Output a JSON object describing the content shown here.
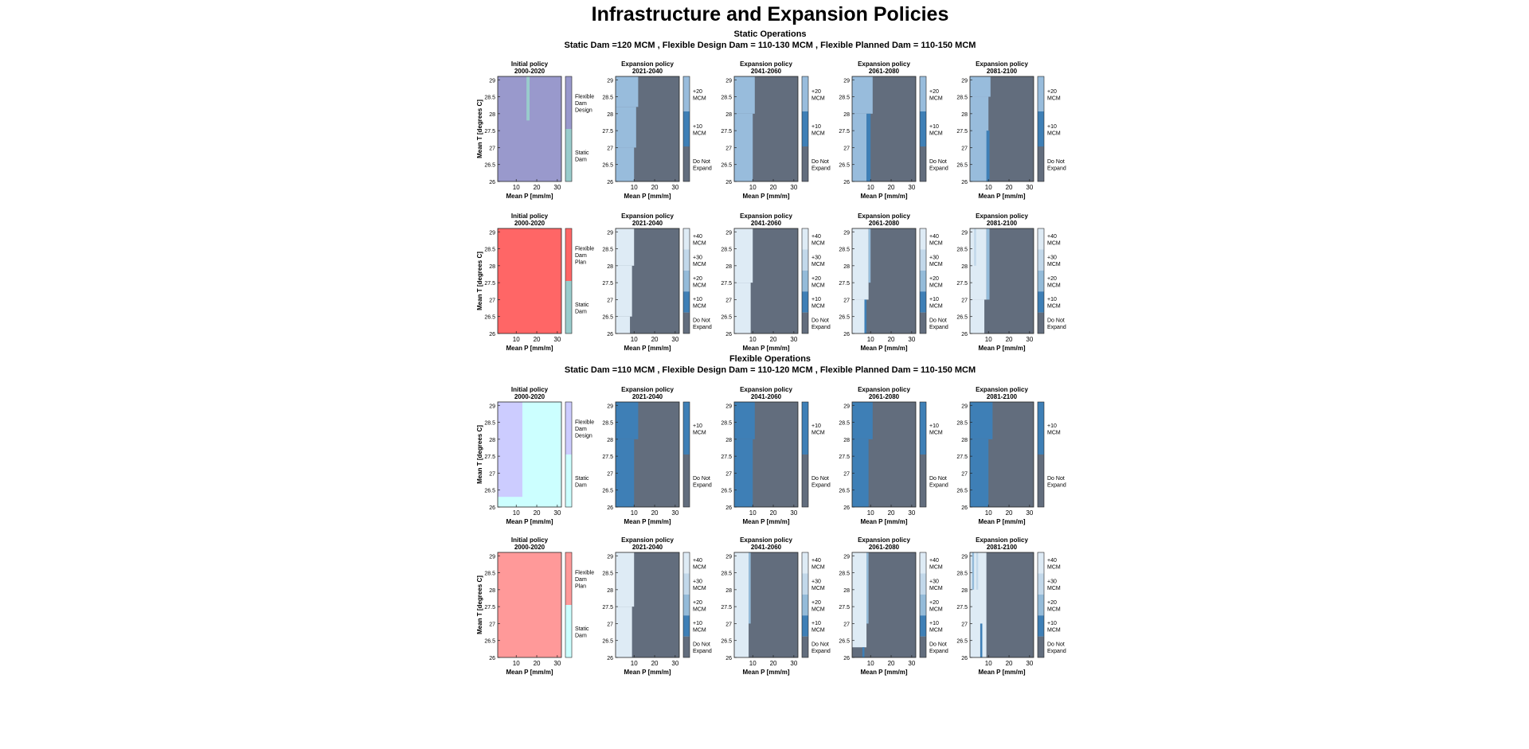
{
  "title": "Infrastructure and Expansion Policies",
  "axes": {
    "x_label": "Mean P [mm/m]",
    "y_label": "Mean T [degrees C]",
    "xlim": [
      1,
      32
    ],
    "ylim": [
      26,
      29.1
    ],
    "xticks": [
      10,
      20,
      30
    ],
    "yticks": [
      26,
      26.5,
      27,
      27.5,
      28,
      28.5,
      29
    ],
    "initial_title": "Initial policy",
    "expansion_title": "Expansion policy",
    "periods": [
      "2000-2020",
      "2021-2040",
      "2041-2060",
      "2061-2080",
      "2081-2100"
    ]
  },
  "sections": [
    {
      "name": "Static Operations",
      "subtitle": "Static Dam =120 MCM , Flexible Design Dam = 110-130 MCM , Flexible Planned Dam = 110-150 MCM",
      "rows": [
        {
          "initial": {
            "legend": [
              {
                "label": [
                  "Flexible",
                  "Dam",
                  "Design"
                ],
                "color": "#9999cc"
              },
              {
                "label": [
                  "Static",
                  "Dam"
                ],
                "color": "#99cccc"
              }
            ],
            "regions": [
              [
                0,
                1,
                32,
                26,
                29.1
              ],
              [
                1,
                15,
                16.5,
                27.8,
                29.1
              ]
            ]
          },
          "expansion": {
            "legend": [
              {
                "label": [
                  "+20",
                  "MCM"
                ],
                "color": "#98bcdc"
              },
              {
                "label": [
                  "+10",
                  "MCM"
                ],
                "color": "#3e7fb6"
              },
              {
                "label": [
                  "Do Not",
                  "Expand"
                ],
                "color": "#626d7d"
              }
            ],
            "panels": [
              [
                [
                  2,
                  1,
                  32,
                  26,
                  29.1
                ],
                [
                  0,
                  1,
                  12,
                  28.2,
                  29.1
                ],
                [
                  0,
                  1,
                  11,
                  27,
                  28.2
                ],
                [
                  0,
                  1,
                  10,
                  26,
                  27
                ]
              ],
              [
                [
                  2,
                  1,
                  32,
                  26,
                  29.1
                ],
                [
                  0,
                  1,
                  11,
                  28,
                  29.1
                ],
                [
                  0,
                  1,
                  10,
                  26,
                  28
                ]
              ],
              [
                [
                  2,
                  1,
                  32,
                  26,
                  29.1
                ],
                [
                  0,
                  1,
                  11,
                  28,
                  29.1
                ],
                [
                  0,
                  1,
                  8,
                  26,
                  28
                ],
                [
                  1,
                  8,
                  10,
                  26,
                  28
                ]
              ],
              [
                [
                  2,
                  1,
                  32,
                  26,
                  29.1
                ],
                [
                  0,
                  1,
                  11,
                  28.5,
                  29.1
                ],
                [
                  0,
                  1,
                  10,
                  26,
                  28.5
                ],
                [
                  1,
                  9,
                  10.5,
                  26,
                  27.5
                ]
              ]
            ]
          }
        },
        {
          "initial": {
            "legend": [
              {
                "label": [
                  "Flexible",
                  "Dam",
                  "Plan"
                ],
                "color": "#ff6666"
              },
              {
                "label": [
                  "Static",
                  "Dam"
                ],
                "color": "#99cccc"
              }
            ],
            "regions": [
              [
                0,
                1,
                32,
                26,
                29.1
              ]
            ]
          },
          "expansion": {
            "legend": [
              {
                "label": [
                  "+40",
                  "MCM"
                ],
                "color": "#deebf5"
              },
              {
                "label": [
                  "+30",
                  "MCM"
                ],
                "color": "#c2d8ea"
              },
              {
                "label": [
                  "+20",
                  "MCM"
                ],
                "color": "#94bbd9"
              },
              {
                "label": [
                  "+10",
                  "MCM"
                ],
                "color": "#3e7fb6"
              },
              {
                "label": [
                  "Do Not",
                  "Expand"
                ],
                "color": "#626d7d"
              }
            ],
            "panels": [
              [
                [
                  4,
                  1,
                  32,
                  26,
                  29.1
                ],
                [
                  0,
                  1,
                  10,
                  28,
                  29.1
                ],
                [
                  0,
                  1,
                  9,
                  26.5,
                  28
                ],
                [
                  0,
                  1,
                  8,
                  26,
                  26.5
                ]
              ],
              [
                [
                  4,
                  1,
                  32,
                  26,
                  29.1
                ],
                [
                  0,
                  1,
                  10,
                  27.5,
                  29.1
                ],
                [
                  0,
                  1,
                  9,
                  26,
                  27.5
                ]
              ],
              [
                [
                  4,
                  1,
                  32,
                  26,
                  29.1
                ],
                [
                  0,
                  1,
                  9,
                  27,
                  29.1
                ],
                [
                  0,
                  1,
                  7,
                  26,
                  27
                ],
                [
                  3,
                  7,
                  8,
                  26,
                  27
                ],
                [
                  2,
                  9,
                  10,
                  27.5,
                  29.1
                ]
              ],
              [
                [
                  4,
                  1,
                  32,
                  26,
                  29.1
                ],
                [
                  0,
                  1,
                  9,
                  27,
                  29.1
                ],
                [
                  0,
                  1,
                  8,
                  26,
                  27
                ],
                [
                  2,
                  9,
                  10.5,
                  27,
                  29.1
                ],
                [
                  1,
                  3,
                  4,
                  28,
                  29.1
                ]
              ]
            ]
          }
        }
      ]
    },
    {
      "name": "Flexible Operations",
      "subtitle": "Static Dam =110 MCM , Flexible Design Dam = 110-120 MCM , Flexible Planned Dam = 110-150 MCM",
      "rows": [
        {
          "initial": {
            "legend": [
              {
                "label": [
                  "Flexible",
                  "Dam",
                  "Design"
                ],
                "color": "#ccccff"
              },
              {
                "label": [
                  "Static",
                  "Dam"
                ],
                "color": "#ccffff"
              }
            ],
            "regions": [
              [
                1,
                1,
                32,
                26,
                29.1
              ],
              [
                0,
                1,
                13,
                26.3,
                29.1
              ]
            ]
          },
          "expansion": {
            "legend": [
              {
                "label": [
                  "+10",
                  "MCM"
                ],
                "color": "#3e7fb6"
              },
              {
                "label": [
                  "Do Not",
                  "Expand"
                ],
                "color": "#626d7d"
              }
            ],
            "panels": [
              [
                [
                  1,
                  1,
                  32,
                  26,
                  29.1
                ],
                [
                  0,
                  1,
                  12,
                  28,
                  29.1
                ],
                [
                  0,
                  1,
                  10,
                  26,
                  28
                ]
              ],
              [
                [
                  1,
                  1,
                  32,
                  26,
                  29.1
                ],
                [
                  0,
                  1,
                  11,
                  28,
                  29.1
                ],
                [
                  0,
                  1,
                  10,
                  26,
                  28
                ]
              ],
              [
                [
                  1,
                  1,
                  32,
                  26,
                  29.1
                ],
                [
                  0,
                  1,
                  11,
                  28,
                  29.1
                ],
                [
                  0,
                  1,
                  9,
                  26,
                  28
                ]
              ],
              [
                [
                  1,
                  1,
                  32,
                  26,
                  29.1
                ],
                [
                  0,
                  1,
                  12,
                  28,
                  29.1
                ],
                [
                  0,
                  1,
                  10,
                  26,
                  28
                ]
              ]
            ]
          }
        },
        {
          "initial": {
            "legend": [
              {
                "label": [
                  "Flexible",
                  "Dam",
                  "Plan"
                ],
                "color": "#ff9999"
              },
              {
                "label": [
                  "Static",
                  "Dam"
                ],
                "color": "#ccffff"
              }
            ],
            "regions": [
              [
                0,
                1,
                32,
                26,
                29.1
              ]
            ]
          },
          "expansion": {
            "legend": [
              {
                "label": [
                  "+40",
                  "MCM"
                ],
                "color": "#deebf5"
              },
              {
                "label": [
                  "+30",
                  "MCM"
                ],
                "color": "#c2d8ea"
              },
              {
                "label": [
                  "+20",
                  "MCM"
                ],
                "color": "#94bbd9"
              },
              {
                "label": [
                  "+10",
                  "MCM"
                ],
                "color": "#3e7fb6"
              },
              {
                "label": [
                  "Do Not",
                  "Expand"
                ],
                "color": "#626d7d"
              }
            ],
            "panels": [
              [
                [
                  4,
                  1,
                  32,
                  26,
                  29.1
                ],
                [
                  0,
                  1,
                  10,
                  27.5,
                  29.1
                ],
                [
                  0,
                  1,
                  9,
                  26,
                  27.5
                ]
              ],
              [
                [
                  4,
                  1,
                  32,
                  26,
                  29.1
                ],
                [
                  0,
                  1,
                  8,
                  26,
                  29.1
                ],
                [
                  2,
                  8,
                  9,
                  27,
                  29.1
                ]
              ],
              [
                [
                  4,
                  1,
                  32,
                  26,
                  29.1
                ],
                [
                  0,
                  1,
                  8,
                  26.3,
                  29.1
                ],
                [
                  2,
                  8,
                  9,
                  27,
                  29.1
                ],
                [
                  3,
                  6,
                  7,
                  26,
                  26.3
                ]
              ],
              [
                [
                  4,
                  1,
                  32,
                  26,
                  29.1
                ],
                [
                  0,
                  1,
                  9,
                  26,
                  29.1
                ],
                [
                  2,
                  2,
                  3,
                  28,
                  29.1
                ],
                [
                  1,
                  4,
                  5,
                  28,
                  29.1
                ],
                [
                  3,
                  6,
                  7,
                  26,
                  27
                ]
              ]
            ]
          }
        }
      ]
    }
  ]
}
